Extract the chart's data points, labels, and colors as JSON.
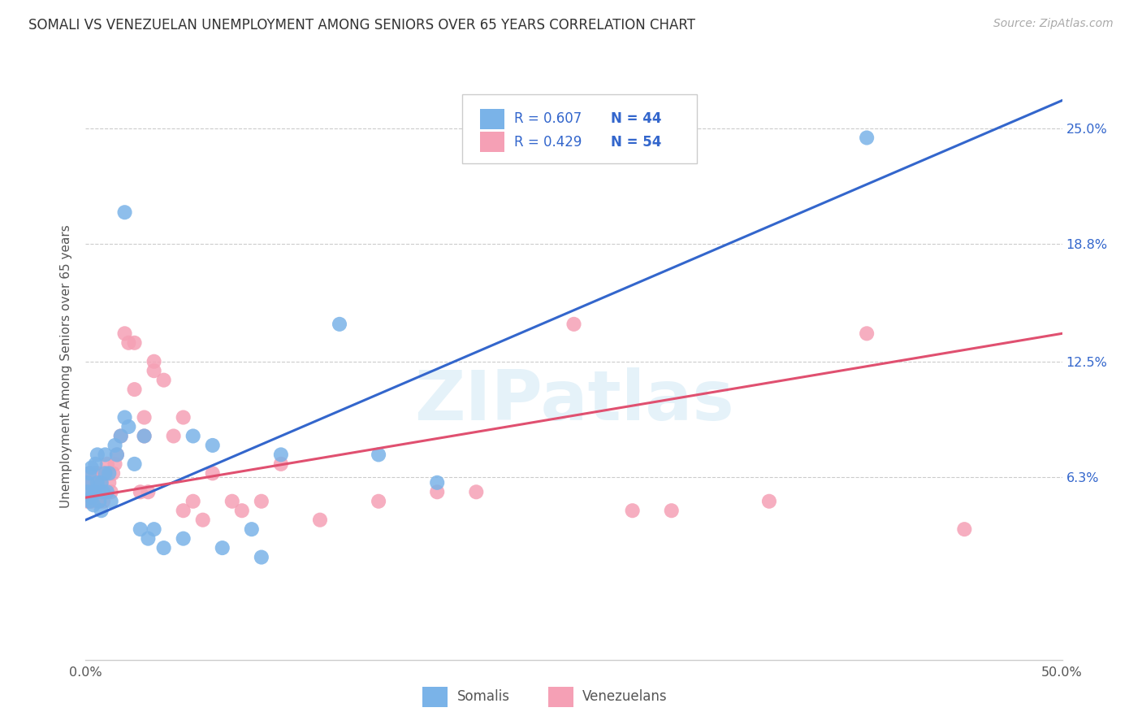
{
  "title": "SOMALI VS VENEZUELAN UNEMPLOYMENT AMONG SENIORS OVER 65 YEARS CORRELATION CHART",
  "source": "Source: ZipAtlas.com",
  "ylabel": "Unemployment Among Seniors over 65 years",
  "xlim": [
    0,
    50
  ],
  "ylim": [
    -3.5,
    28.0
  ],
  "ytick_positions": [
    6.3,
    12.5,
    18.8,
    25.0
  ],
  "ytick_labels": [
    "6.3%",
    "12.5%",
    "18.8%",
    "25.0%"
  ],
  "somali_color": "#7ab3e8",
  "venezuelan_color": "#f5a0b5",
  "somali_line_color": "#3366cc",
  "venezuelan_line_color": "#e05070",
  "accent_color": "#3366cc",
  "somali_R": "0.607",
  "somali_N": "44",
  "venezuelan_R": "0.429",
  "venezuelan_N": "54",
  "somali_scatter_x": [
    0.1,
    0.1,
    0.2,
    0.2,
    0.3,
    0.3,
    0.4,
    0.4,
    0.5,
    0.5,
    0.6,
    0.6,
    0.7,
    0.8,
    0.8,
    0.9,
    1.0,
    1.0,
    1.1,
    1.2,
    1.3,
    1.5,
    1.6,
    1.8,
    2.0,
    2.0,
    2.2,
    2.5,
    2.8,
    3.0,
    3.2,
    3.5,
    4.0,
    5.0,
    5.5,
    6.5,
    7.0,
    8.5,
    9.0,
    10.0,
    13.0,
    15.0,
    18.0,
    40.0
  ],
  "somali_scatter_y": [
    5.5,
    6.0,
    5.0,
    6.5,
    5.2,
    6.8,
    4.8,
    5.5,
    5.5,
    7.0,
    6.0,
    7.5,
    5.0,
    4.5,
    6.0,
    5.5,
    6.5,
    7.5,
    5.5,
    6.5,
    5.0,
    8.0,
    7.5,
    8.5,
    9.5,
    20.5,
    9.0,
    7.0,
    3.5,
    8.5,
    3.0,
    3.5,
    2.5,
    3.0,
    8.5,
    8.0,
    2.5,
    3.5,
    2.0,
    7.5,
    14.5,
    7.5,
    6.0,
    24.5
  ],
  "venezuelan_scatter_x": [
    0.1,
    0.1,
    0.2,
    0.2,
    0.3,
    0.3,
    0.4,
    0.5,
    0.5,
    0.6,
    0.6,
    0.7,
    0.8,
    0.9,
    0.9,
    1.0,
    1.1,
    1.2,
    1.3,
    1.4,
    1.5,
    1.6,
    1.8,
    2.0,
    2.2,
    2.5,
    2.8,
    3.0,
    3.2,
    3.5,
    4.0,
    4.5,
    5.0,
    5.5,
    6.0,
    6.5,
    7.5,
    8.0,
    9.0,
    10.0,
    12.0,
    15.0,
    18.0,
    20.0,
    25.0,
    28.0,
    30.0,
    35.0,
    2.5,
    3.0,
    3.5,
    5.0,
    40.0,
    45.0
  ],
  "venezuelan_scatter_y": [
    5.0,
    6.0,
    5.5,
    6.5,
    5.0,
    6.0,
    5.5,
    5.5,
    6.5,
    5.0,
    6.5,
    5.5,
    6.0,
    5.0,
    6.5,
    5.5,
    7.0,
    6.0,
    5.5,
    6.5,
    7.0,
    7.5,
    8.5,
    14.0,
    13.5,
    11.0,
    5.5,
    9.5,
    5.5,
    12.5,
    11.5,
    8.5,
    9.5,
    5.0,
    4.0,
    6.5,
    5.0,
    4.5,
    5.0,
    7.0,
    4.0,
    5.0,
    5.5,
    5.5,
    14.5,
    4.5,
    4.5,
    5.0,
    13.5,
    8.5,
    12.0,
    4.5,
    14.0,
    3.5
  ],
  "somali_line_x": [
    0,
    50
  ],
  "somali_line_y": [
    4.0,
    26.5
  ],
  "venezuelan_line_x": [
    0,
    50
  ],
  "venezuelan_line_y": [
    5.2,
    14.0
  ],
  "background_color": "#ffffff",
  "grid_color": "#cccccc",
  "watermark_text": "ZIPatlas",
  "watermark_color": "#d0e8f5"
}
